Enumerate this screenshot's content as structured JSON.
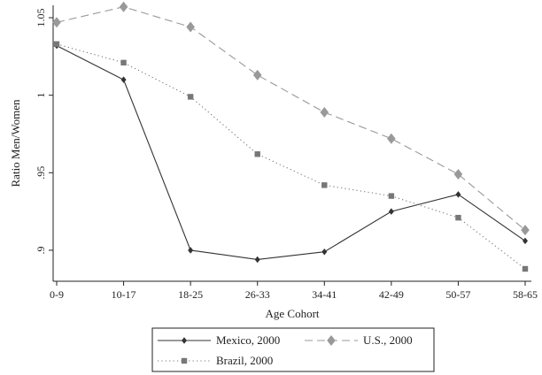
{
  "chart_data": {
    "type": "line",
    "categories": [
      "0-9",
      "10-17",
      "18-25",
      "26-33",
      "34-41",
      "42-49",
      "50-57",
      "58-65"
    ],
    "xlabel": "Age Cohort",
    "ylabel": "Ratio Men/Women",
    "ylim": [
      0.88,
      1.058
    ],
    "yticks": [
      0.9,
      0.95,
      1,
      1.05
    ],
    "ytick_labels": [
      ".9",
      ".95",
      "1",
      "1.05"
    ],
    "grid": false,
    "legend_position": "bottom",
    "series": [
      {
        "name": "Mexico, 2000",
        "values": [
          1.032,
          1.01,
          0.9,
          0.894,
          0.899,
          0.925,
          0.936,
          0.906
        ],
        "color": "#333333",
        "line_style": "solid",
        "marker": "diamond"
      },
      {
        "name": "U.S., 2000",
        "values": [
          1.047,
          1.057,
          1.044,
          1.013,
          0.989,
          0.972,
          0.949,
          0.913
        ],
        "color": "#999999",
        "line_style": "dashed",
        "marker": "diamond"
      },
      {
        "name": "Brazil, 2000",
        "values": [
          1.033,
          1.021,
          0.999,
          0.962,
          0.942,
          0.935,
          0.921,
          0.888
        ],
        "color": "#777777",
        "line_style": "dotted",
        "marker": "square"
      }
    ]
  }
}
